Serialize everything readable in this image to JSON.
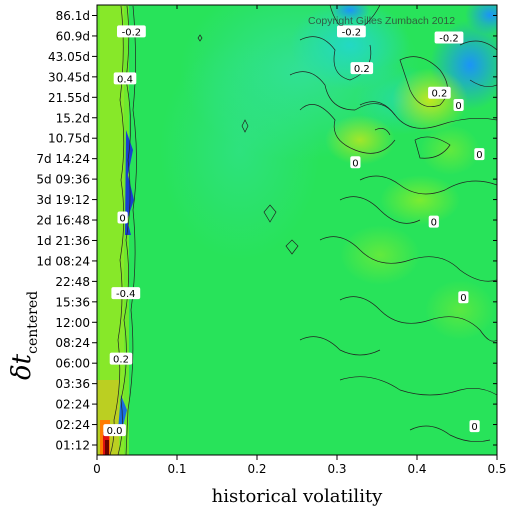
{
  "chart_data": {
    "type": "heatmap",
    "title": "",
    "copyright": "Copyright Gilles Zumbach 2012",
    "xlabel": "historical volatility",
    "ylabel_main": "δt",
    "ylabel_sub": "centered",
    "x_ticks": [
      "0",
      "0.1",
      "0.2",
      "0.3",
      "0.4",
      "0.5"
    ],
    "x_tick_values": [
      0,
      0.1,
      0.2,
      0.3,
      0.4,
      0.5
    ],
    "xlim": [
      0,
      0.5
    ],
    "y_ticks": [
      "86.1d",
      "60.9d",
      "43.05d",
      "30.45d",
      "21.55d",
      "15.2d",
      "10.75d",
      "7d 14:24",
      "5d 09:36",
      "3d 19:12",
      "2d 16:48",
      "1d 21:36",
      "1d 08:24",
      "22:48",
      "15:36",
      "12:00",
      "08:24",
      "06:00",
      "03:36",
      "02:24",
      "02:24",
      "01:12"
    ],
    "contour_levels": [
      -0.4,
      -0.2,
      0,
      0.2,
      0.4
    ],
    "contour_labels": [
      {
        "text": "-0.2",
        "x": 0.043,
        "y_tick": 0.8
      },
      {
        "text": "0.4",
        "x": 0.035,
        "y_tick": 3.1
      },
      {
        "text": "0",
        "x": 0.032,
        "y_tick": 9.9
      },
      {
        "text": "-0.4",
        "x": 0.036,
        "y_tick": 13.6
      },
      {
        "text": "0.2",
        "x": 0.03,
        "y_tick": 16.8
      },
      {
        "text": "0.0",
        "x": 0.022,
        "y_tick": 20.3
      },
      {
        "text": "-0.2",
        "x": 0.318,
        "y_tick": 0.8
      },
      {
        "text": "-0.2",
        "x": 0.44,
        "y_tick": 1.1
      },
      {
        "text": "0.2",
        "x": 0.331,
        "y_tick": 2.6
      },
      {
        "text": "0.2",
        "x": 0.428,
        "y_tick": 3.8
      },
      {
        "text": "0",
        "x": 0.452,
        "y_tick": 4.4
      },
      {
        "text": "0",
        "x": 0.478,
        "y_tick": 6.8
      },
      {
        "text": "0",
        "x": 0.323,
        "y_tick": 7.2
      },
      {
        "text": "0",
        "x": 0.421,
        "y_tick": 10.1
      },
      {
        "text": "0",
        "x": 0.458,
        "y_tick": 13.8
      },
      {
        "text": "0",
        "x": 0.472,
        "y_tick": 20.1
      }
    ],
    "colorscale": [
      "#7a0000",
      "#ff0000",
      "#ff8800",
      "#cccc00",
      "#80ee30",
      "#22ee55",
      "#22ddaa",
      "#20a0ff",
      "#0000cc"
    ],
    "grid": false,
    "legend": "none"
  }
}
